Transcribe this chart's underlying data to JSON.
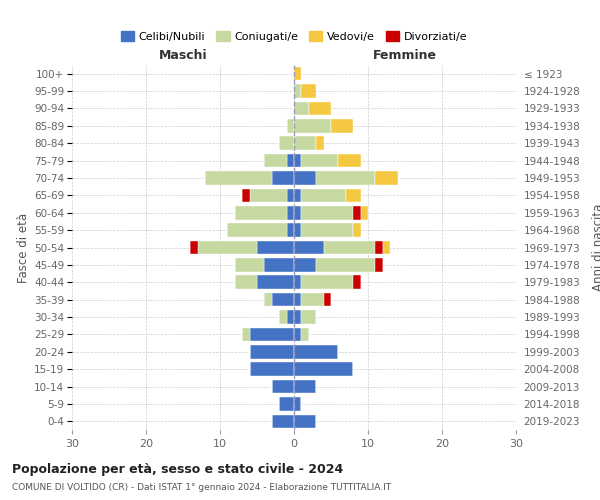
{
  "age_groups": [
    "0-4",
    "5-9",
    "10-14",
    "15-19",
    "20-24",
    "25-29",
    "30-34",
    "35-39",
    "40-44",
    "45-49",
    "50-54",
    "55-59",
    "60-64",
    "65-69",
    "70-74",
    "75-79",
    "80-84",
    "85-89",
    "90-94",
    "95-99",
    "100+"
  ],
  "birth_years": [
    "2019-2023",
    "2014-2018",
    "2009-2013",
    "2004-2008",
    "1999-2003",
    "1994-1998",
    "1989-1993",
    "1984-1988",
    "1979-1983",
    "1974-1978",
    "1969-1973",
    "1964-1968",
    "1959-1963",
    "1954-1958",
    "1949-1953",
    "1944-1948",
    "1939-1943",
    "1934-1938",
    "1929-1933",
    "1924-1928",
    "≤ 1923"
  ],
  "colors": {
    "celibi": "#4472C4",
    "coniugati": "#c5d9a0",
    "vedovi": "#f5c842",
    "divorziati": "#cc0000"
  },
  "maschi": {
    "celibi": [
      3,
      2,
      3,
      6,
      6,
      6,
      1,
      3,
      5,
      4,
      5,
      1,
      1,
      1,
      3,
      1,
      0,
      0,
      0,
      0,
      0
    ],
    "coniugati": [
      0,
      0,
      0,
      0,
      0,
      1,
      1,
      1,
      3,
      4,
      8,
      8,
      7,
      5,
      9,
      3,
      2,
      1,
      0,
      0,
      0
    ],
    "vedovi": [
      0,
      0,
      0,
      0,
      0,
      0,
      0,
      0,
      0,
      0,
      0,
      0,
      0,
      0,
      0,
      0,
      0,
      0,
      0,
      0,
      0
    ],
    "divorziati": [
      0,
      0,
      0,
      0,
      0,
      0,
      0,
      0,
      0,
      0,
      1,
      0,
      0,
      1,
      0,
      0,
      0,
      0,
      0,
      0,
      0
    ]
  },
  "femmine": {
    "celibi": [
      3,
      1,
      3,
      8,
      6,
      1,
      1,
      1,
      1,
      3,
      4,
      1,
      1,
      1,
      3,
      1,
      0,
      0,
      0,
      0,
      0
    ],
    "coniugati": [
      0,
      0,
      0,
      0,
      0,
      1,
      2,
      3,
      7,
      8,
      7,
      7,
      7,
      6,
      8,
      5,
      3,
      5,
      2,
      1,
      0
    ],
    "vedovi": [
      0,
      0,
      0,
      0,
      0,
      0,
      0,
      0,
      0,
      0,
      1,
      1,
      1,
      2,
      3,
      3,
      1,
      3,
      3,
      2,
      1
    ],
    "divorziati": [
      0,
      0,
      0,
      0,
      0,
      0,
      0,
      1,
      1,
      1,
      1,
      0,
      1,
      0,
      0,
      0,
      0,
      0,
      0,
      0,
      0
    ]
  },
  "xlim": 30,
  "title": "Popolazione per età, sesso e stato civile - 2024",
  "subtitle": "COMUNE DI VOLTIDO (CR) - Dati ISTAT 1° gennaio 2024 - Elaborazione TUTTITALIA.IT",
  "xlabel_left": "Maschi",
  "xlabel_right": "Femmine",
  "ylabel": "Fasce di età",
  "ylabel_right": "Anni di nascita",
  "legend_labels": [
    "Celibi/Nubili",
    "Coniugati/e",
    "Vedovi/e",
    "Divorziati/e"
  ],
  "bg_color": "#ffffff",
  "grid_color": "#cccccc"
}
